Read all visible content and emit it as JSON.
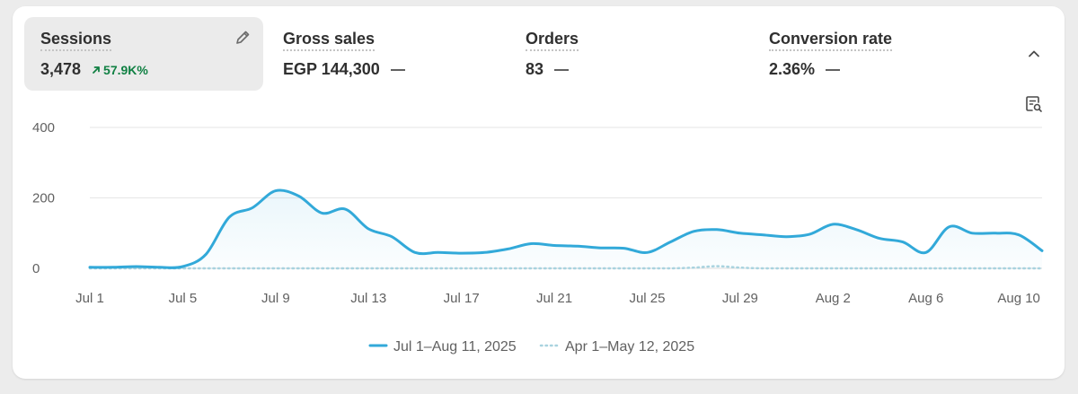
{
  "metrics": [
    {
      "label": "Sessions",
      "value": "3,478",
      "trend": "57.9K%",
      "trend_direction": "up",
      "trend_color": "#108043",
      "selected": true
    },
    {
      "label": "Gross sales",
      "value": "EGP 144,300",
      "change": "—"
    },
    {
      "label": "Orders",
      "value": "83",
      "change": "—"
    },
    {
      "label": "Conversion rate",
      "value": "2.36%",
      "change": "—"
    }
  ],
  "icons": {
    "edit": "pencil-icon",
    "collapse": "chevron-up-icon",
    "search": "search-document-icon"
  },
  "colors": {
    "primary_series": "#32a9d9",
    "comparison_series": "#a9d3df",
    "grid": "#e6e6e6"
  },
  "chart_data": {
    "type": "line",
    "title": "",
    "xlabel": "",
    "ylabel": "",
    "ylim": [
      0,
      400
    ],
    "y_ticks": [
      0,
      200,
      400
    ],
    "x_tick_labels": [
      "Jul 1",
      "Jul 5",
      "Jul 9",
      "Jul 13",
      "Jul 17",
      "Jul 21",
      "Jul 25",
      "Jul 29",
      "Aug 2",
      "Aug 6",
      "Aug 10"
    ],
    "grid": true,
    "legend_position": "bottom-center",
    "x": [
      "Jul 1",
      "Jul 2",
      "Jul 3",
      "Jul 4",
      "Jul 5",
      "Jul 6",
      "Jul 7",
      "Jul 8",
      "Jul 9",
      "Jul 10",
      "Jul 11",
      "Jul 12",
      "Jul 13",
      "Jul 14",
      "Jul 15",
      "Jul 16",
      "Jul 17",
      "Jul 18",
      "Jul 19",
      "Jul 20",
      "Jul 21",
      "Jul 22",
      "Jul 23",
      "Jul 24",
      "Jul 25",
      "Jul 26",
      "Jul 27",
      "Jul 28",
      "Jul 29",
      "Jul 30",
      "Jul 31",
      "Aug 1",
      "Aug 2",
      "Aug 3",
      "Aug 4",
      "Aug 5",
      "Aug 6",
      "Aug 7",
      "Aug 8",
      "Aug 9",
      "Aug 10",
      "Aug 11"
    ],
    "series": [
      {
        "name": "Jul 1–Aug 11, 2025",
        "style": "solid",
        "values": [
          3,
          3,
          5,
          3,
          5,
          40,
          145,
          172,
          220,
          205,
          157,
          168,
          112,
          90,
          45,
          45,
          43,
          45,
          55,
          70,
          65,
          63,
          58,
          57,
          45,
          75,
          105,
          110,
          100,
          95,
          90,
          97,
          125,
          110,
          85,
          75,
          45,
          118,
          100,
          100,
          95,
          50
        ]
      },
      {
        "name": "Apr 1–May 12, 2025",
        "style": "dotted",
        "values": [
          0,
          0,
          0,
          0,
          0,
          0,
          0,
          0,
          0,
          0,
          0,
          0,
          0,
          0,
          0,
          0,
          0,
          0,
          0,
          0,
          0,
          0,
          0,
          0,
          0,
          0,
          2,
          6,
          2,
          0,
          0,
          0,
          0,
          0,
          0,
          0,
          0,
          0,
          0,
          0,
          0,
          0
        ]
      }
    ]
  }
}
